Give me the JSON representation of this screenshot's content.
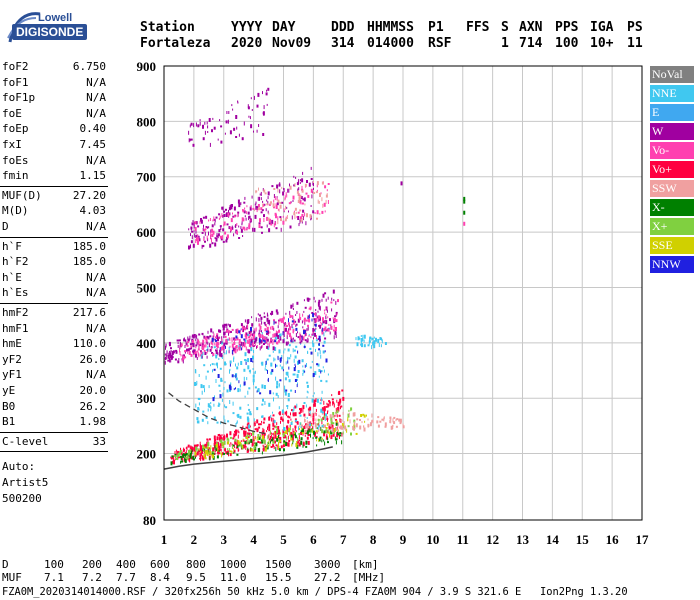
{
  "header": {
    "logo_top": "Lowell",
    "logo_bottom": "DIGISONDE",
    "row1": [
      "Station",
      "YYYY",
      "DAY",
      "DDD",
      "HHMMSS",
      "P1",
      "FFS",
      "S",
      "AXN",
      "PPS",
      "IGA",
      "PS"
    ],
    "row2": [
      "Fortaleza",
      "2020",
      "Nov09",
      "314",
      "014000",
      "RSF",
      "",
      "1",
      "714",
      "100",
      "10+",
      "11"
    ]
  },
  "params": {
    "group1": [
      {
        "label": "foF2",
        "value": "6.750"
      },
      {
        "label": "foF1",
        "value": "N/A"
      },
      {
        "label": "foF1p",
        "value": "N/A"
      },
      {
        "label": "foE",
        "value": "N/A"
      },
      {
        "label": "foEp",
        "value": "0.40"
      },
      {
        "label": "fxI",
        "value": "7.45"
      },
      {
        "label": "foEs",
        "value": "N/A"
      },
      {
        "label": "fmin",
        "value": "1.15"
      }
    ],
    "group2": [
      {
        "label": "MUF(D)",
        "value": "27.20"
      },
      {
        "label": "M(D)",
        "value": "4.03"
      },
      {
        "label": "D",
        "value": "N/A"
      }
    ],
    "group3": [
      {
        "label": "h`F",
        "value": "185.0"
      },
      {
        "label": "h`F2",
        "value": "185.0"
      },
      {
        "label": "h`E",
        "value": "N/A"
      },
      {
        "label": "h`Es",
        "value": "N/A"
      }
    ],
    "group4": [
      {
        "label": "hmF2",
        "value": "217.6"
      },
      {
        "label": "hmF1",
        "value": "N/A"
      },
      {
        "label": "hmE",
        "value": "110.0"
      },
      {
        "label": "yF2",
        "value": "26.0"
      },
      {
        "label": "yF1",
        "value": "N/A"
      },
      {
        "label": "yE",
        "value": "20.0"
      },
      {
        "label": "B0",
        "value": "26.2"
      },
      {
        "label": "B1",
        "value": "1.98"
      }
    ],
    "clevel": {
      "label": "C-level",
      "value": "33"
    },
    "auto_lines": [
      "Auto:",
      "Artist5",
      "500200"
    ]
  },
  "legend": [
    {
      "label": "NoVal",
      "color": "#808080"
    },
    {
      "label": "NNE",
      "color": "#40c8f0"
    },
    {
      "label": "E",
      "color": "#40a8f0"
    },
    {
      "label": "W",
      "color": "#a000a0"
    },
    {
      "label": "Vo-",
      "color": "#ff40b0"
    },
    {
      "label": "Vo+",
      "color": "#ff0040"
    },
    {
      "label": "SSW",
      "color": "#f0a0a0"
    },
    {
      "label": "X-",
      "color": "#008000"
    },
    {
      "label": "X+",
      "color": "#80d040"
    },
    {
      "label": "SSE",
      "color": "#d0d000"
    },
    {
      "label": "NNW",
      "color": "#2020e0"
    }
  ],
  "footer": {
    "d_row": [
      "D",
      "100",
      "200",
      "400",
      "600",
      "800",
      "1000",
      "1500",
      "3000",
      "[km]"
    ],
    "muf_row": [
      "MUF",
      "7.1",
      "7.2",
      "7.7",
      "8.4",
      "9.5",
      "11.0",
      "15.5",
      "27.2",
      "[MHz]"
    ],
    "info_line": "FZA0M_2020314014000.RSF / 320fx256h 50 kHz 5.0 km / DPS-4 FZA0M 904 / 3.9 S 321.6 E   Ion2Png 1.3.20"
  },
  "chart_data": {
    "type": "scatter",
    "title": "",
    "xlabel": "",
    "ylabel": "",
    "xlim": [
      1,
      17
    ],
    "ylim": [
      80,
      900
    ],
    "x_ticks": [
      1,
      2,
      3,
      4,
      5,
      6,
      7,
      8,
      9,
      10,
      11,
      12,
      13,
      14,
      15,
      16,
      17
    ],
    "y_ticks": [
      80,
      200,
      300,
      400,
      500,
      600,
      700,
      800,
      900
    ],
    "grid": true,
    "clusters": [
      {
        "name": "F-trace lower",
        "color": "#ff0040",
        "xmin": 1.2,
        "xmax": 7.0,
        "ymin_start": 185,
        "ymax_start": 205,
        "ymin_end": 230,
        "ymax_end": 320,
        "n": 520
      },
      {
        "name": "F-trace X",
        "color": "#008000",
        "xmin": 1.2,
        "xmax": 7.0,
        "ymin_start": 185,
        "ymax_start": 200,
        "ymin_end": 220,
        "ymax_end": 260,
        "n": 120
      },
      {
        "name": "F-trace X+",
        "color": "#80d040",
        "xmin": 1.3,
        "xmax": 7.5,
        "ymin_start": 190,
        "ymax_start": 205,
        "ymin_end": 240,
        "ymax_end": 290,
        "n": 110
      },
      {
        "name": "F-trace SSE",
        "color": "#d0d000",
        "xmin": 2.0,
        "xmax": 8.0,
        "ymin_start": 190,
        "ymax_start": 210,
        "ymin_end": 240,
        "ymax_end": 280,
        "n": 90
      },
      {
        "name": "F-trace SSW",
        "color": "#f0a0a0",
        "xmin": 5.5,
        "xmax": 9.0,
        "ymin_start": 240,
        "ymax_start": 280,
        "ymin_end": 250,
        "ymax_end": 270,
        "n": 90
      },
      {
        "name": "mid cloud E",
        "color": "#40c8f0",
        "xmin": 2.0,
        "xmax": 6.5,
        "ymin_start": 260,
        "ymax_start": 400,
        "ymin_end": 240,
        "ymax_end": 440,
        "n": 320
      },
      {
        "name": "mid cloud W",
        "color": "#a000a0",
        "xmin": 1.0,
        "xmax": 6.8,
        "ymin_start": 365,
        "ymax_start": 400,
        "ymin_end": 410,
        "ymax_end": 500,
        "n": 380
      },
      {
        "name": "mid cloud Vo-",
        "color": "#ff40b0",
        "xmin": 1.5,
        "xmax": 6.8,
        "ymin_start": 370,
        "ymax_start": 400,
        "ymin_end": 420,
        "ymax_end": 480,
        "n": 240
      },
      {
        "name": "mid cloud NNW",
        "color": "#2020e0",
        "xmin": 2.5,
        "xmax": 6.5,
        "ymin_start": 300,
        "ymax_start": 420,
        "ymin_end": 320,
        "ymax_end": 460,
        "n": 90
      },
      {
        "name": "upper W",
        "color": "#a000a0",
        "xmin": 1.8,
        "xmax": 6.0,
        "ymin_start": 570,
        "ymax_start": 620,
        "ymin_end": 620,
        "ymax_end": 720,
        "n": 220
      },
      {
        "name": "upper Vo-",
        "color": "#ff40b0",
        "xmin": 2.0,
        "xmax": 6.5,
        "ymin_start": 580,
        "ymax_start": 620,
        "ymin_end": 640,
        "ymax_end": 700,
        "n": 120
      },
      {
        "name": "upper SSW",
        "color": "#f0a0a0",
        "xmin": 4.0,
        "xmax": 6.5,
        "ymin_start": 620,
        "ymax_start": 680,
        "ymin_end": 620,
        "ymax_end": 700,
        "n": 60
      },
      {
        "name": "top sparse",
        "color": "#a000a0",
        "xmin": 1.8,
        "xmax": 4.5,
        "ymin_start": 750,
        "ymax_start": 800,
        "ymin_end": 780,
        "ymax_end": 870,
        "n": 70
      },
      {
        "name": "isolated E",
        "color": "#40c8f0",
        "xmin": 7.4,
        "xmax": 8.4,
        "ymin_start": 395,
        "ymax_start": 415,
        "ymin_end": 395,
        "ymax_end": 415,
        "n": 40
      }
    ],
    "points": [
      {
        "x": 11.05,
        "y": 660,
        "color": "#008000"
      },
      {
        "x": 11.05,
        "y": 655,
        "color": "#008000"
      },
      {
        "x": 11.05,
        "y": 635,
        "color": "#008000"
      },
      {
        "x": 11.05,
        "y": 615,
        "color": "#ff40b0"
      },
      {
        "x": 8.95,
        "y": 688,
        "color": "#a000a0"
      }
    ],
    "profile_solid": [
      [
        1.0,
        172
      ],
      [
        1.5,
        177
      ],
      [
        2.0,
        181
      ],
      [
        3.0,
        186
      ],
      [
        4.0,
        191
      ],
      [
        5.0,
        197
      ],
      [
        5.8,
        203
      ],
      [
        6.3,
        208
      ],
      [
        6.65,
        212
      ]
    ],
    "profile_dashed": [
      [
        1.15,
        310
      ],
      [
        1.5,
        295
      ],
      [
        2.0,
        280
      ],
      [
        2.5,
        265
      ],
      [
        3.0,
        255
      ],
      [
        3.5,
        248
      ],
      [
        4.0,
        240
      ],
      [
        4.5,
        235
      ]
    ]
  }
}
